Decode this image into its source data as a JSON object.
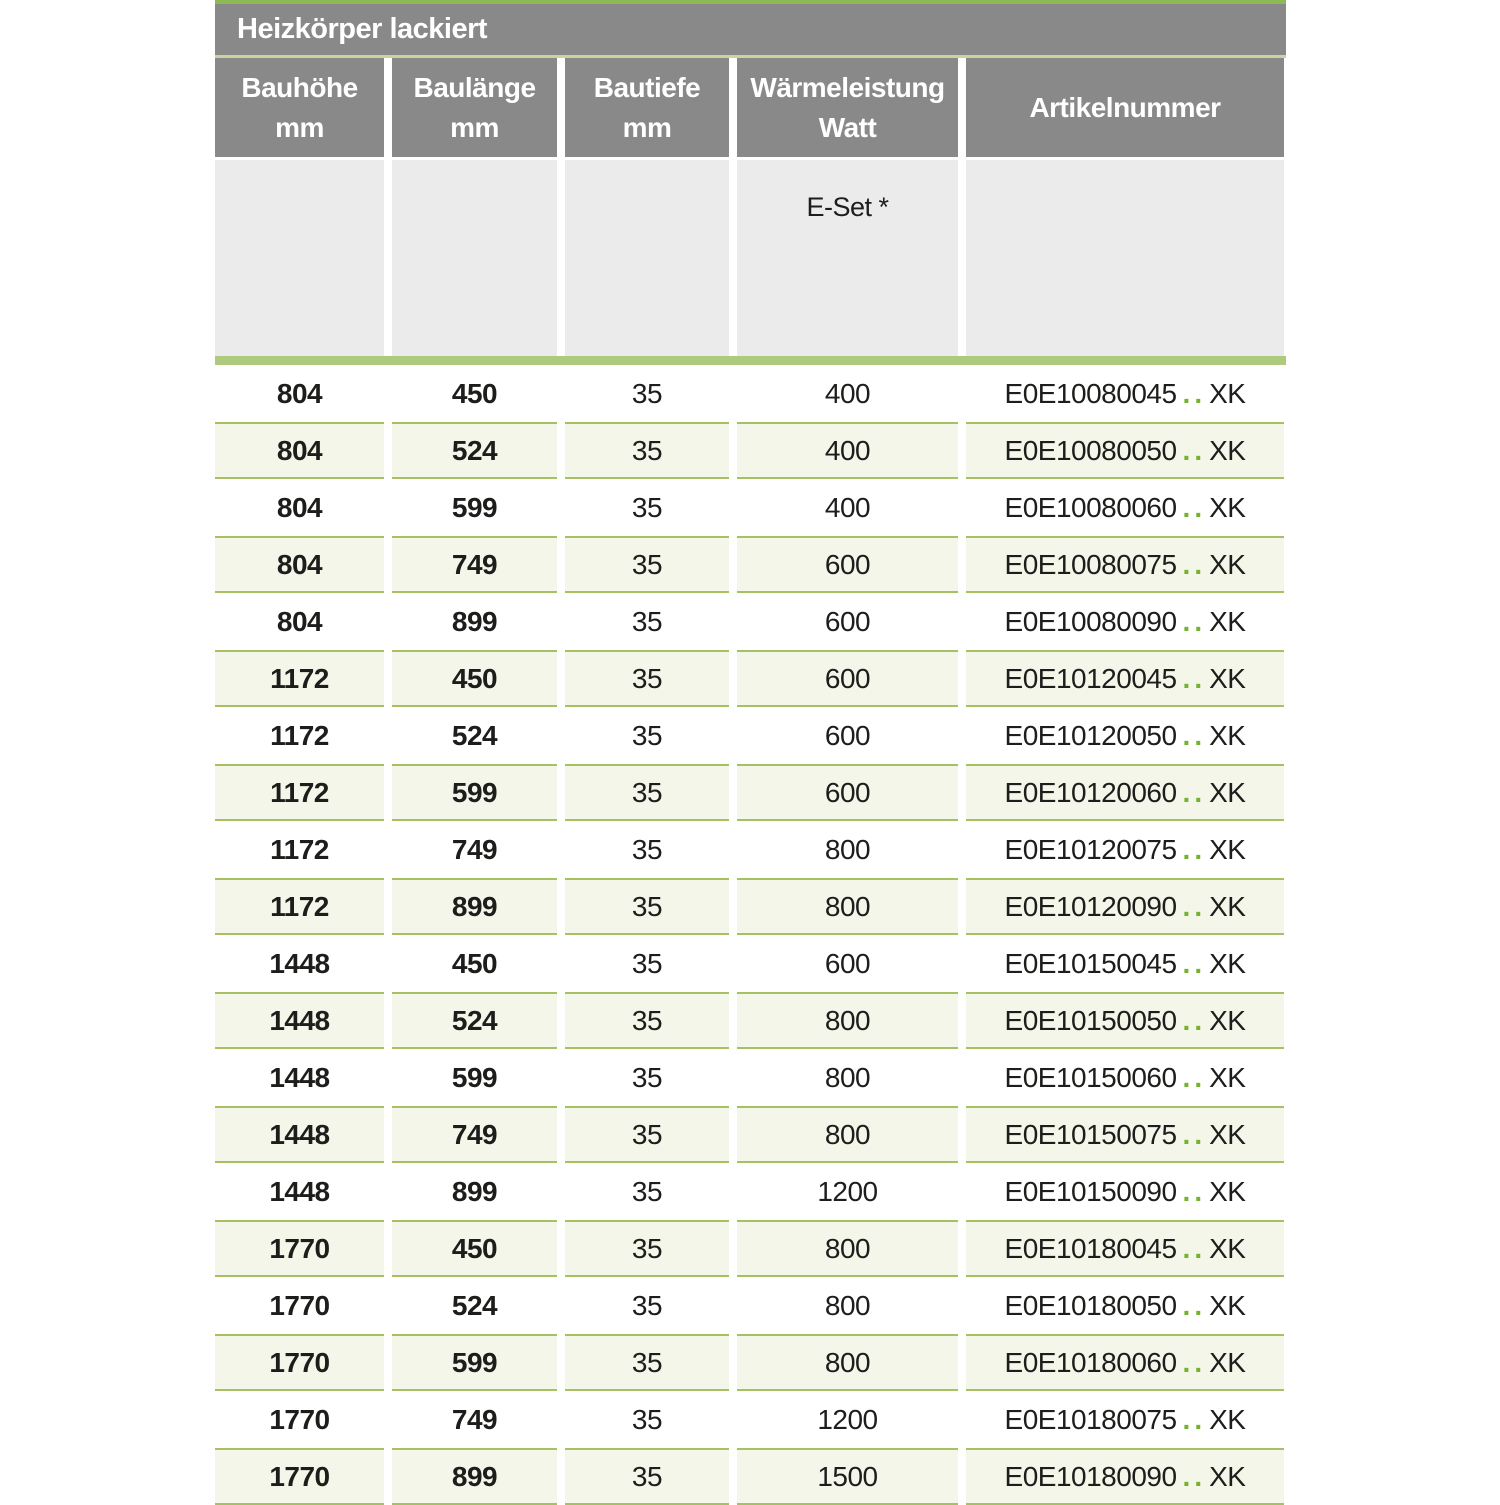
{
  "table": {
    "title": "Heizkörper lackiert",
    "columns": [
      {
        "key": "bauhoehe",
        "label": "Bauhöhe",
        "unit": "mm",
        "bold_values": true
      },
      {
        "key": "baulaenge",
        "label": "Baulänge",
        "unit": "mm",
        "bold_values": true
      },
      {
        "key": "bautiefe",
        "label": "Bautiefe",
        "unit": "mm",
        "bold_values": false
      },
      {
        "key": "waermeleistung",
        "label": "Wärmeleistung",
        "unit": "Watt",
        "bold_values": false
      },
      {
        "key": "artikelnummer",
        "label": "Artikelnummer",
        "unit": "",
        "bold_values": false
      }
    ],
    "subheader": {
      "eset_label": "E-Set *"
    },
    "article_dots": "..",
    "article_suffix": "XK",
    "rows": [
      {
        "bauhoehe": "804",
        "baulaenge": "450",
        "bautiefe": "35",
        "watt": "400",
        "artikel": "E0E10080045"
      },
      {
        "bauhoehe": "804",
        "baulaenge": "524",
        "bautiefe": "35",
        "watt": "400",
        "artikel": "E0E10080050"
      },
      {
        "bauhoehe": "804",
        "baulaenge": "599",
        "bautiefe": "35",
        "watt": "400",
        "artikel": "E0E10080060"
      },
      {
        "bauhoehe": "804",
        "baulaenge": "749",
        "bautiefe": "35",
        "watt": "600",
        "artikel": "E0E10080075"
      },
      {
        "bauhoehe": "804",
        "baulaenge": "899",
        "bautiefe": "35",
        "watt": "600",
        "artikel": "E0E10080090"
      },
      {
        "bauhoehe": "1172",
        "baulaenge": "450",
        "bautiefe": "35",
        "watt": "600",
        "artikel": "E0E10120045"
      },
      {
        "bauhoehe": "1172",
        "baulaenge": "524",
        "bautiefe": "35",
        "watt": "600",
        "artikel": "E0E10120050"
      },
      {
        "bauhoehe": "1172",
        "baulaenge": "599",
        "bautiefe": "35",
        "watt": "600",
        "artikel": "E0E10120060"
      },
      {
        "bauhoehe": "1172",
        "baulaenge": "749",
        "bautiefe": "35",
        "watt": "800",
        "artikel": "E0E10120075"
      },
      {
        "bauhoehe": "1172",
        "baulaenge": "899",
        "bautiefe": "35",
        "watt": "800",
        "artikel": "E0E10120090"
      },
      {
        "bauhoehe": "1448",
        "baulaenge": "450",
        "bautiefe": "35",
        "watt": "600",
        "artikel": "E0E10150045"
      },
      {
        "bauhoehe": "1448",
        "baulaenge": "524",
        "bautiefe": "35",
        "watt": "800",
        "artikel": "E0E10150050"
      },
      {
        "bauhoehe": "1448",
        "baulaenge": "599",
        "bautiefe": "35",
        "watt": "800",
        "artikel": "E0E10150060"
      },
      {
        "bauhoehe": "1448",
        "baulaenge": "749",
        "bautiefe": "35",
        "watt": "800",
        "artikel": "E0E10150075"
      },
      {
        "bauhoehe": "1448",
        "baulaenge": "899",
        "bautiefe": "35",
        "watt": "1200",
        "artikel": "E0E10150090"
      },
      {
        "bauhoehe": "1770",
        "baulaenge": "450",
        "bautiefe": "35",
        "watt": "800",
        "artikel": "E0E10180045"
      },
      {
        "bauhoehe": "1770",
        "baulaenge": "524",
        "bautiefe": "35",
        "watt": "800",
        "artikel": "E0E10180050"
      },
      {
        "bauhoehe": "1770",
        "baulaenge": "599",
        "bautiefe": "35",
        "watt": "800",
        "artikel": "E0E10180060"
      },
      {
        "bauhoehe": "1770",
        "baulaenge": "749",
        "bautiefe": "35",
        "watt": "1200",
        "artikel": "E0E10180075"
      },
      {
        "bauhoehe": "1770",
        "baulaenge": "899",
        "bautiefe": "35",
        "watt": "1500",
        "artikel": "E0E10180090"
      }
    ]
  },
  "colors": {
    "header_gray": "#898989",
    "top_line_green": "#8eba55",
    "separator_green": "#c9d59e",
    "thick_bar_green": "#aeca7d",
    "row_alt_bg": "#f3f6e9",
    "row_border_green": "#a5c161",
    "subheader_gray": "#ebebeb",
    "dots_green": "#74b32d"
  }
}
